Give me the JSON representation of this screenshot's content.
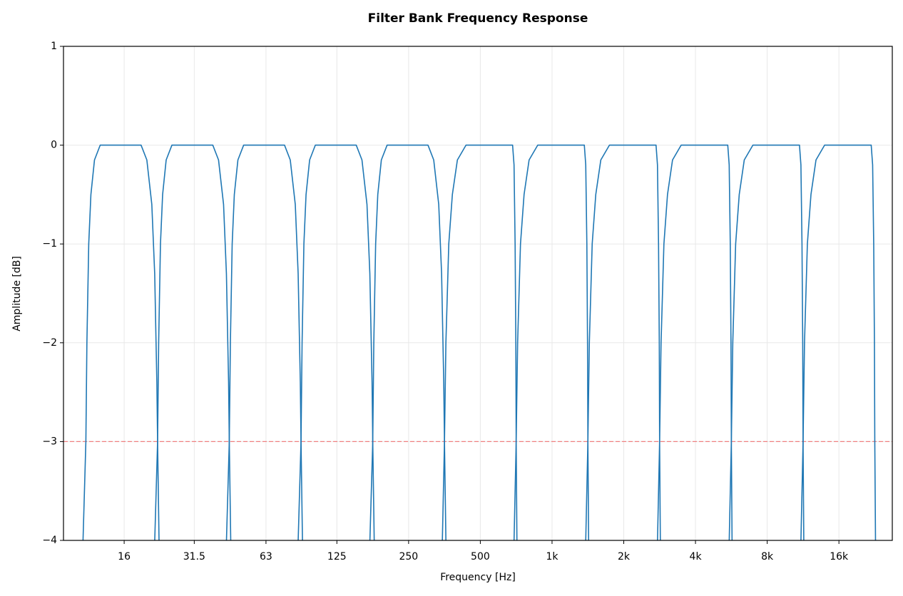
{
  "chart_data": {
    "type": "line",
    "title": "Filter Bank Frequency Response",
    "x_label": "Frequency [Hz]",
    "y_label": "Amplitude [dB]",
    "x_scale": "log",
    "grid": true,
    "xlim": [
      8.9,
      26800
    ],
    "ylim": [
      -4,
      1
    ],
    "xticks": [
      16,
      31.5,
      63,
      125,
      250,
      500,
      {
        "value": 1000,
        "label": "1k"
      },
      {
        "value": 2000,
        "label": "2k"
      },
      {
        "value": 4000,
        "label": "4k"
      },
      {
        "value": 8000,
        "label": "8k"
      },
      {
        "value": 16000,
        "label": "16k"
      }
    ],
    "yticks": [
      {
        "value": -4,
        "label": "−4"
      },
      {
        "value": -3,
        "label": "−3"
      },
      {
        "value": -2,
        "label": "−2"
      },
      {
        "value": -1,
        "label": "−1"
      },
      0,
      1
    ],
    "reference_line": {
      "value": -3,
      "color": "#f08080"
    },
    "series": [
      {
        "color": "#1f77b4",
        "x": [
          10.75,
          11.05,
          11.16,
          11.36,
          11.6,
          12.01,
          12.69,
          18.84,
          19.92,
          20.9,
          21.49,
          21.94,
          22.1,
          22.41
        ],
        "values": [
          -4,
          -3,
          -2,
          -1,
          -0.5,
          -0.15,
          0,
          0,
          -0.15,
          -0.6,
          -1.3,
          -2.4,
          -3,
          -4
        ]
      },
      {
        "color": "#1f77b4",
        "x": [
          21.5,
          22.1,
          22.33,
          22.72,
          23.2,
          24.01,
          25.38,
          37.68,
          39.83,
          41.81,
          42.98,
          43.89,
          44.19,
          44.81
        ],
        "values": [
          -4,
          -3,
          -2,
          -1,
          -0.5,
          -0.15,
          0,
          0,
          -0.15,
          -0.6,
          -1.3,
          -2.4,
          -3,
          -4
        ]
      },
      {
        "color": "#1f77b4",
        "x": [
          43.0,
          44.19,
          44.66,
          45.44,
          46.39,
          48.03,
          50.77,
          75.36,
          79.66,
          83.62,
          85.97,
          87.78,
          88.39,
          89.63
        ],
        "values": [
          -4,
          -3,
          -2,
          -1,
          -0.5,
          -0.15,
          0,
          0,
          -0.15,
          -0.6,
          -1.3,
          -2.4,
          -3,
          -4
        ]
      },
      {
        "color": "#1f77b4",
        "x": [
          85.99,
          88.39,
          89.31,
          90.88,
          92.79,
          96.05,
          101.5,
          150.7,
          159.3,
          167.2,
          171.9,
          175.6,
          176.8,
          179.3
        ],
        "values": [
          -4,
          -3,
          -2,
          -1,
          -0.5,
          -0.15,
          0,
          0,
          -0.15,
          -0.6,
          -1.3,
          -2.4,
          -3,
          -4
        ]
      },
      {
        "color": "#1f77b4",
        "x": [
          172.0,
          176.8,
          178.6,
          181.8,
          185.6,
          192.1,
          203.1,
          301.5,
          318.7,
          334.5,
          343.9,
          351.1,
          353.6,
          358.5
        ],
        "values": [
          -4,
          -3,
          -2,
          -1,
          -0.5,
          -0.15,
          0,
          0,
          -0.15,
          -0.6,
          -1.3,
          -2.4,
          -3,
          -4
        ]
      },
      {
        "color": "#1f77b4",
        "x": [
          346.4,
          353.6,
          358.5,
          368.6,
          381.6,
          400.6,
          435.3,
          683.0,
          692.6,
          699.8,
          704.7,
          707.1,
          712.1
        ],
        "values": [
          -4,
          -3,
          -2,
          -1,
          -0.5,
          -0.15,
          0,
          0,
          -0.2,
          -1,
          -2,
          -3,
          -4
        ]
      },
      {
        "color": "#1f77b4",
        "x": [
          692.7,
          707.1,
          717.0,
          737.1,
          763.1,
          801.1,
          870.6,
          1366,
          1385,
          1400,
          1409,
          1414,
          1424
        ],
        "values": [
          -4,
          -3,
          -2,
          -1,
          -0.5,
          -0.15,
          0,
          0,
          -0.2,
          -1,
          -2,
          -3,
          -4
        ]
      },
      {
        "color": "#1f77b4",
        "x": [
          1385,
          1414,
          1434,
          1474,
          1526,
          1602,
          1741,
          2732,
          2770,
          2799,
          2819,
          2828,
          2848
        ],
        "values": [
          -4,
          -3,
          -2,
          -1,
          -0.5,
          -0.15,
          0,
          0,
          -0.2,
          -1,
          -2,
          -3,
          -4
        ]
      },
      {
        "color": "#1f77b4",
        "x": [
          2771,
          2828,
          2868,
          2948,
          3052,
          3204,
          3482,
          5464,
          5540,
          5598,
          5637,
          5657,
          5696
        ],
        "values": [
          -4,
          -3,
          -2,
          -1,
          -0.5,
          -0.15,
          0,
          0,
          -0.2,
          -1,
          -2,
          -3,
          -4
        ]
      },
      {
        "color": "#1f77b4",
        "x": [
          5542,
          5657,
          5736,
          5897,
          6105,
          6409,
          6965,
          10928,
          11081,
          11197,
          11274,
          11314,
          11393
        ],
        "values": [
          -4,
          -3,
          -2,
          -1,
          -0.5,
          -0.15,
          0,
          0,
          -0.2,
          -1,
          -2,
          -3,
          -4
        ]
      },
      {
        "color": "#1f77b4",
        "x": [
          11083,
          11314,
          11472,
          11794,
          12210,
          12818,
          13930,
          21856,
          22162,
          22394,
          22549,
          22627,
          22786
        ],
        "values": [
          -4,
          -3,
          -2,
          -1,
          -0.5,
          -0.15,
          0,
          0,
          -0.2,
          -1,
          -2,
          -3,
          -4
        ]
      }
    ]
  }
}
